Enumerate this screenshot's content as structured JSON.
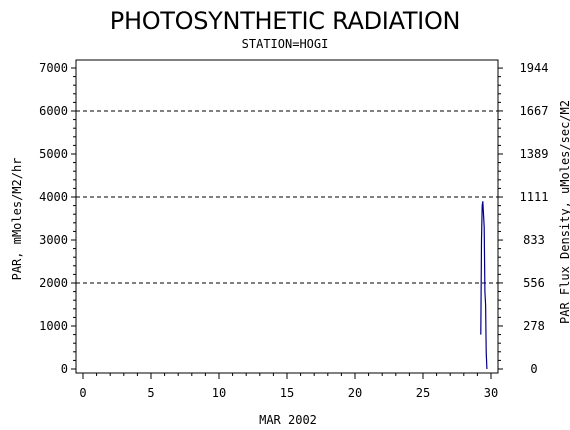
{
  "chart_data": {
    "type": "line",
    "title": "PHOTOSYNTHETIC RADIATION",
    "subtitle": "STATION=HOGI",
    "xlabel": "MAR 2002",
    "ylabel": "PAR, mMoles/M2/hr",
    "y2label": "PAR Flux Density, uMoles/sec/M2",
    "xlim": [
      0,
      30
    ],
    "ylim": [
      0,
      7000
    ],
    "x_ticks": [
      0,
      5,
      10,
      15,
      20,
      25,
      30
    ],
    "x_tick_labels": [
      "0",
      "5",
      "10",
      "15",
      "20",
      "25",
      "30"
    ],
    "y_ticks": [
      0,
      1000,
      2000,
      3000,
      4000,
      5000,
      6000,
      7000
    ],
    "y_tick_labels": [
      "0",
      "1000",
      "2000",
      "3000",
      "4000",
      "5000",
      "6000",
      "7000"
    ],
    "y2_ticks": [
      0,
      278,
      556,
      833,
      1111,
      1389,
      1667,
      1944
    ],
    "y2_tick_labels": [
      "0",
      "278",
      "556",
      "833",
      "1111",
      "1389",
      "1667",
      "1944"
    ],
    "gridlines_y": [
      2000,
      4000,
      6000
    ],
    "grid": "dashed horizontal at 2000, 4000, 6000",
    "series": [
      {
        "color": "#00008b",
        "x": [
          29.25,
          29.3,
          29.35,
          29.4,
          29.45,
          29.5,
          29.55,
          29.6,
          29.65,
          29.7
        ],
        "y": [
          800,
          3000,
          3800,
          3900,
          3600,
          3300,
          1800,
          1500,
          400,
          0
        ]
      }
    ]
  }
}
